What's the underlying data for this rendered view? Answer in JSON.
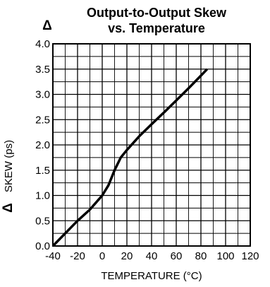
{
  "chart_data": {
    "type": "line",
    "title_line1": "Output-to-Output Skew",
    "title_line2": "vs. Temperature",
    "title_symbol": "Δ",
    "ylabel": "SKEW (ps)",
    "ylabel_symbol": "Δ",
    "xlabel": "TEMPERATURE (°C)",
    "xlim": [
      -40,
      120
    ],
    "ylim": [
      0.0,
      4.0
    ],
    "x_ticks": [
      -40,
      -20,
      0,
      20,
      40,
      60,
      80,
      100,
      120
    ],
    "x_tick_labels": [
      "-40",
      "-20",
      "0",
      "20",
      "40",
      "60",
      "80",
      "100",
      "120"
    ],
    "y_ticks": [
      0.0,
      0.5,
      1.0,
      1.5,
      2.0,
      2.5,
      3.0,
      3.5,
      4.0
    ],
    "y_tick_labels": [
      "0.0",
      "0.5",
      "1.0",
      "1.5",
      "2.0",
      "2.5",
      "3.0",
      "3.5",
      "4.0"
    ],
    "grid": true,
    "minor_x_step": 10,
    "minor_y_step": 0.25,
    "series": [
      {
        "color": "#000000",
        "x": [
          -40,
          -30,
          -20,
          -10,
          0,
          5,
          10,
          15,
          20,
          30,
          40,
          50,
          60,
          70,
          80,
          85
        ],
        "y": [
          0.0,
          0.25,
          0.5,
          0.72,
          1.0,
          1.2,
          1.5,
          1.75,
          1.9,
          2.17,
          2.41,
          2.64,
          2.88,
          3.12,
          3.37,
          3.5
        ]
      }
    ]
  }
}
